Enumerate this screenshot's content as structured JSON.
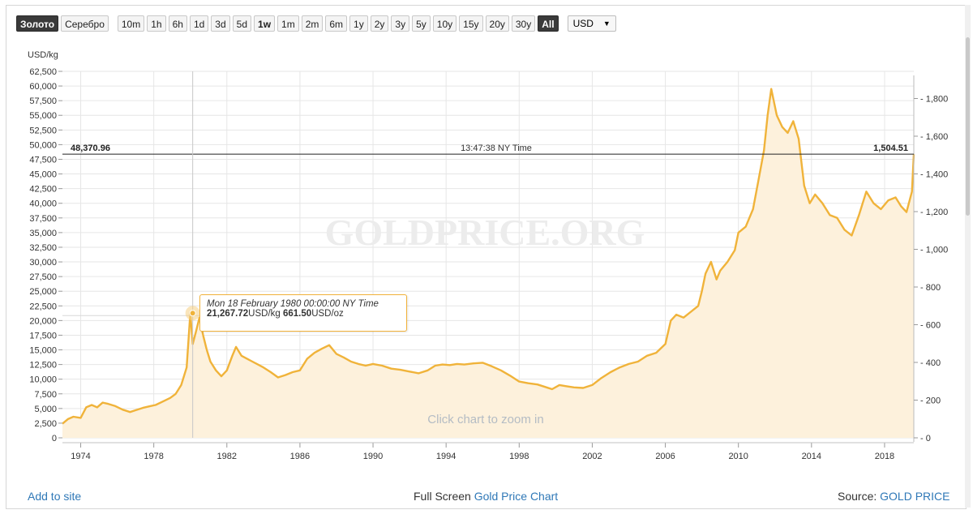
{
  "toolbar": {
    "metal_gold": "Золото",
    "metal_silver": "Серебро",
    "ranges": [
      "10m",
      "1h",
      "6h",
      "1d",
      "3d",
      "5d",
      "1w",
      "1m",
      "2m",
      "6m",
      "1y",
      "2y",
      "3y",
      "5y",
      "10y",
      "15y",
      "20y",
      "30y",
      "All"
    ],
    "active_range": "All",
    "currency": "USD"
  },
  "chart_data": {
    "type": "area",
    "ylabel_left": "USD/kg",
    "left_ticks": [
      0,
      2500,
      5000,
      7500,
      10000,
      12500,
      15000,
      17500,
      20000,
      22500,
      25000,
      27500,
      30000,
      32500,
      35000,
      37500,
      40000,
      42500,
      45000,
      47500,
      50000,
      52500,
      55000,
      57500,
      60000,
      62500
    ],
    "left_tick_labels": [
      "0",
      "2,500",
      "5,000",
      "7,500",
      "10,000",
      "12,500",
      "15,000",
      "17,500",
      "20,000",
      "22,500",
      "25,000",
      "27,500",
      "30,000",
      "32,500",
      "35,000",
      "37,500",
      "40,000",
      "42,500",
      "45,000",
      "47,500",
      "50,000",
      "52,500",
      "55,000",
      "57,500",
      "60,000",
      "62,500"
    ],
    "right_ticks": [
      0,
      200,
      400,
      600,
      800,
      1000,
      1200,
      1400,
      1600,
      1800
    ],
    "right_tick_labels": [
      "0",
      "200",
      "400",
      "600",
      "800",
      "1,000",
      "1,200",
      "1,400",
      "1,600",
      "1,800"
    ],
    "x_ticks": [
      1974,
      1978,
      1982,
      1986,
      1990,
      1994,
      1998,
      2002,
      2006,
      2010,
      2014,
      2018
    ],
    "xlim": [
      1973.0,
      2019.6
    ],
    "ylim": [
      0,
      62500
    ],
    "series": [
      {
        "x": [
          1973.0,
          1973.3,
          1973.6,
          1974.0,
          1974.3,
          1974.6,
          1974.9,
          1975.2,
          1975.5,
          1975.9,
          1976.3,
          1976.7,
          1977.0,
          1977.4,
          1977.8,
          1978.1,
          1978.5,
          1978.9,
          1979.2,
          1979.5,
          1979.8,
          1980.0,
          1980.13,
          1980.3,
          1980.5,
          1980.7,
          1980.9,
          1981.1,
          1981.4,
          1981.7,
          1982.0,
          1982.3,
          1982.5,
          1982.8,
          1983.1,
          1983.4,
          1983.7,
          1984.0,
          1984.4,
          1984.8,
          1985.2,
          1985.6,
          1986.0,
          1986.4,
          1986.8,
          1987.2,
          1987.6,
          1988.0,
          1988.4,
          1988.8,
          1989.2,
          1989.6,
          1990.0,
          1990.5,
          1991.0,
          1991.5,
          1992.0,
          1992.5,
          1993.0,
          1993.4,
          1993.8,
          1994.2,
          1994.6,
          1995.0,
          1995.5,
          1996.0,
          1996.5,
          1997.0,
          1997.5,
          1998.0,
          1998.5,
          1999.0,
          1999.5,
          1999.8,
          2000.2,
          2000.6,
          2001.0,
          2001.5,
          2002.0,
          2002.5,
          2003.0,
          2003.5,
          2004.0,
          2004.5,
          2005.0,
          2005.5,
          2006.0,
          2006.3,
          2006.6,
          2007.0,
          2007.4,
          2007.8,
          2008.0,
          2008.2,
          2008.5,
          2008.8,
          2009.0,
          2009.4,
          2009.8,
          2010.0,
          2010.4,
          2010.8,
          2011.1,
          2011.4,
          2011.6,
          2011.8,
          2012.1,
          2012.4,
          2012.7,
          2013.0,
          2013.3,
          2013.6,
          2013.9,
          2014.2,
          2014.6,
          2015.0,
          2015.4,
          2015.8,
          2016.2,
          2016.6,
          2017.0,
          2017.4,
          2017.8,
          2018.2,
          2018.6,
          2018.9,
          2019.2,
          2019.5,
          2019.6
        ],
        "y": [
          2400,
          3200,
          3600,
          3400,
          5200,
          5600,
          5200,
          6000,
          5800,
          5400,
          4800,
          4400,
          4700,
          5100,
          5400,
          5600,
          6200,
          6800,
          7500,
          9000,
          12000,
          21268,
          16000,
          18000,
          20500,
          17500,
          15000,
          13000,
          11500,
          10500,
          11500,
          14000,
          15500,
          14000,
          13500,
          13000,
          12500,
          12000,
          11200,
          10300,
          10700,
          11200,
          11500,
          13500,
          14500,
          15200,
          15800,
          14300,
          13700,
          13000,
          12600,
          12300,
          12600,
          12300,
          11800,
          11600,
          11300,
          11000,
          11500,
          12300,
          12500,
          12400,
          12600,
          12500,
          12700,
          12800,
          12200,
          11500,
          10600,
          9600,
          9300,
          9100,
          8600,
          8300,
          9000,
          8800,
          8600,
          8500,
          9000,
          10200,
          11200,
          12000,
          12600,
          13000,
          14000,
          14500,
          16000,
          20000,
          21000,
          20500,
          21500,
          22500,
          25000,
          28000,
          30000,
          27000,
          28500,
          30000,
          32000,
          35000,
          36000,
          39000,
          44000,
          49000,
          55000,
          59500,
          55000,
          53000,
          52000,
          54000,
          51000,
          43000,
          40000,
          41500,
          40000,
          38000,
          37500,
          35500,
          34500,
          38000,
          42000,
          40000,
          39000,
          40500,
          41000,
          39500,
          38500,
          42000,
          48370
        ]
      }
    ],
    "tooltip": {
      "date": "Mon 18 February 1980 00:00:00 NY Time",
      "kg_value": "21,267.72",
      "kg_unit": "USD/kg",
      "oz_value": "661.50",
      "oz_unit": "USD/oz"
    },
    "crosshair": {
      "left_label": "48,370.96",
      "center_label": "13:47:38 NY Time",
      "right_label": "1,504.51",
      "value": 48370.96
    },
    "watermark": "GOLDPRICE.ORG",
    "zoom_hint": "Click chart to zoom in",
    "colors": {
      "line": "#f0b33a",
      "fill": "#fdf1dc",
      "grid": "#e6e6e6"
    }
  },
  "footer": {
    "add_to_site": "Add to site",
    "full_screen": "Full Screen",
    "chart_link": "Gold Price Chart",
    "source_label": "Source:",
    "source_link": "GOLD PRICE"
  }
}
